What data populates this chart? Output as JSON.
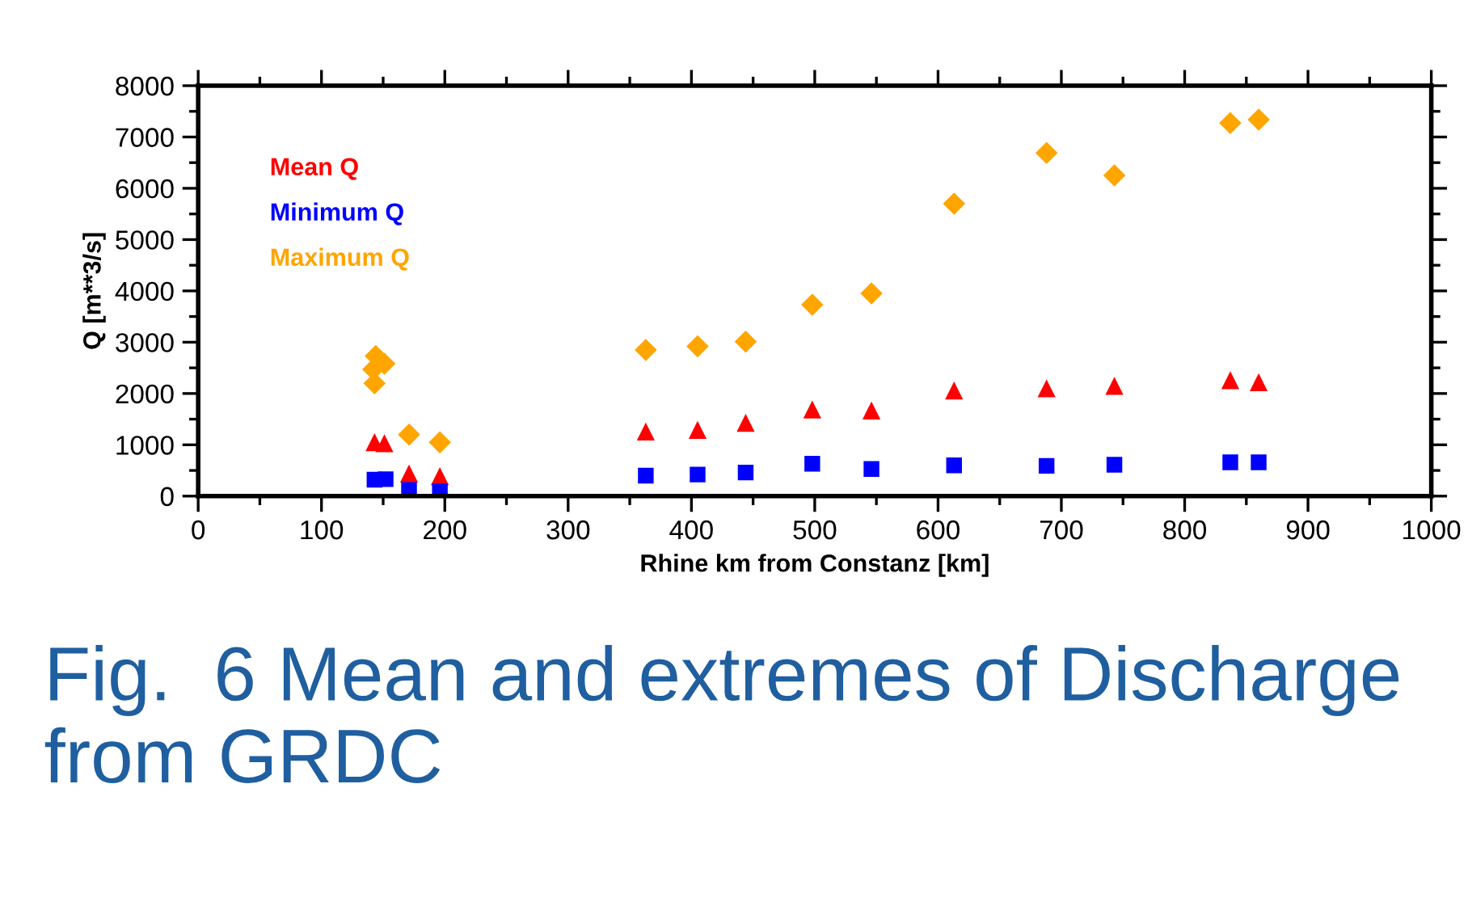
{
  "chart_data": {
    "type": "scatter",
    "xlabel": "Rhine km from Constanz [km]",
    "ylabel": "Q [m**3/s]",
    "xlim": [
      0,
      1000
    ],
    "xticks": [
      0,
      100,
      200,
      300,
      400,
      500,
      600,
      700,
      800,
      900,
      1000
    ],
    "ylim": [
      0,
      8000
    ],
    "yticks": [
      0,
      1000,
      2000,
      3000,
      4000,
      5000,
      6000,
      7000,
      8000
    ],
    "grid": false,
    "legend": "top left",
    "annotations": [
      "Fig.  6 Mean and extremes of Discharge from GRDC"
    ],
    "series": [
      {
        "name": "Mean Q",
        "color": "#ff0000",
        "marker": "triangle",
        "x": [
          143,
          151,
          171,
          196,
          363,
          405,
          444,
          498,
          546,
          613,
          688,
          743,
          837,
          860
        ],
        "values": [
          1050,
          1030,
          440,
          390,
          1260,
          1290,
          1430,
          1690,
          1670,
          2060,
          2100,
          2150,
          2260,
          2220
        ]
      },
      {
        "name": "Minimum Q",
        "color": "#0000ff",
        "marker": "square",
        "x": [
          143,
          152,
          171,
          196,
          363,
          405,
          444,
          498,
          546,
          613,
          688,
          743,
          837,
          860
        ],
        "values": [
          320,
          330,
          120,
          90,
          400,
          420,
          460,
          630,
          530,
          600,
          590,
          610,
          660,
          660
        ]
      },
      {
        "name": "Maximum Q",
        "color": "#ffa500",
        "marker": "diamond",
        "x": [
          144,
          151,
          142,
          143,
          171,
          196,
          363,
          405,
          444,
          498,
          546,
          613,
          688,
          743,
          837,
          860
        ],
        "values": [
          2730,
          2580,
          2470,
          2200,
          1200,
          1050,
          2850,
          2920,
          3010,
          3730,
          3950,
          5700,
          6690,
          6250,
          7270,
          7340
        ]
      }
    ]
  }
}
